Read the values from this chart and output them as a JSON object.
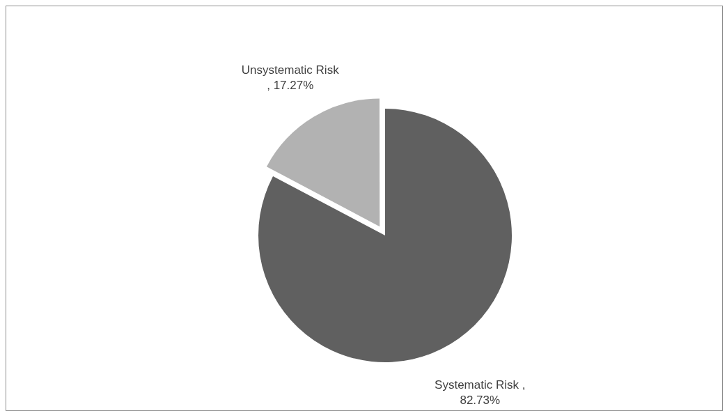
{
  "chart_data": {
    "type": "pie",
    "categories": [
      "Systematic Risk",
      "Unsystematic Risk"
    ],
    "values": [
      82.73,
      17.27
    ],
    "colors": [
      "#606060",
      "#b2b2b2"
    ],
    "value_labels": [
      ", 82.73%",
      ", 17.27%"
    ],
    "legend": false
  }
}
